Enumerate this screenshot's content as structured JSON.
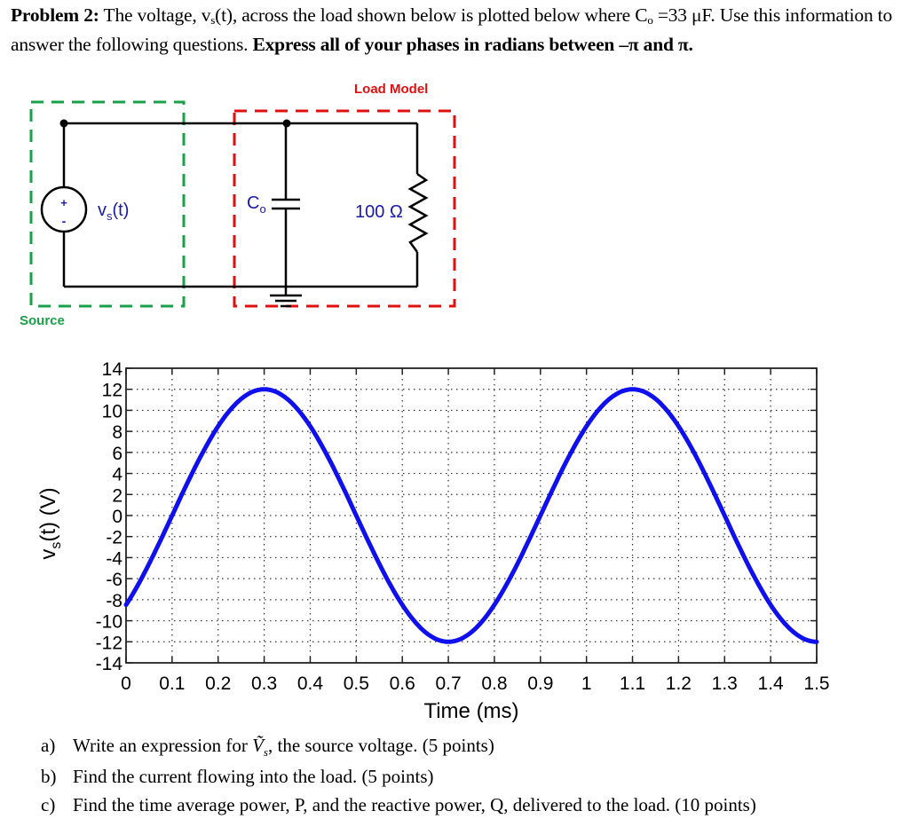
{
  "problem": {
    "label": "Problem 2:",
    "text_1": " The voltage, v",
    "text_1_sub": "s",
    "text_2": "(t), across the load shown below is plotted below where C",
    "text_2_sub": "o",
    "text_3": " =33  μF.  Use this information to answer the following questions.  ",
    "bold_instruction": "Express all of your phases in radians between –π and π."
  },
  "circuit": {
    "source_box_label": "Source",
    "source_box_color": "#1aa04a",
    "load_box_label": "Load Model",
    "load_box_color": "#e01010",
    "source_symbol": {
      "plus": "+",
      "minus": "-"
    },
    "source_label_main": "v",
    "source_label_sub": "s",
    "source_label_tail": "(t)",
    "capacitor_label_main": "C",
    "capacitor_label_sub": "o",
    "resistor_label": "100 Ω",
    "label_color": "#1a1aaa"
  },
  "chart_data": {
    "type": "line",
    "title": "",
    "xlabel": "Time (ms)",
    "ylabel": "v_s(t) (V)",
    "xlim": [
      0,
      1.5
    ],
    "ylim": [
      -14,
      14
    ],
    "grid": true,
    "x_ticks": [
      "0",
      "0.1",
      "0.2",
      "0.3",
      "0.4",
      "0.5",
      "0.6",
      "0.7",
      "0.8",
      "0.9",
      "1",
      "1.1",
      "1.2",
      "1.3",
      "1.4",
      "1.5"
    ],
    "y_ticks": [
      "14",
      "12",
      "10",
      "8",
      "6",
      "4",
      "2",
      "0",
      "-2",
      "-4",
      "-6",
      "-8",
      "-10",
      "-12",
      "-14"
    ],
    "series": [
      {
        "name": "v_s(t)",
        "color": "#1010ee",
        "x": [
          0,
          0.1,
          0.2,
          0.3,
          0.4,
          0.5,
          0.6,
          0.7,
          0.8,
          0.9,
          1.0,
          1.1,
          1.2,
          1.3,
          1.4,
          1.5
        ],
        "values": [
          -8.5,
          0,
          8.5,
          12,
          8.5,
          0,
          -8.5,
          -12,
          -8.5,
          0,
          8.5,
          12,
          8.5,
          0,
          -8.5,
          -12
        ]
      }
    ],
    "amplitude_V": 12,
    "period_ms": 0.8,
    "peak_time_ms": 0.3
  },
  "questions": [
    {
      "label": "a)",
      "text_pre": "Write an expression for ",
      "symbol": "Ṽ",
      "symbol_sub": "s",
      "text_post": ", the source voltage. (5 points)"
    },
    {
      "label": "b)",
      "text": "Find the current flowing into the load. (5 points)"
    },
    {
      "label": "c)",
      "text": "Find the time average power, P, and the reactive power, Q, delivered to the load. (10 points)"
    }
  ]
}
